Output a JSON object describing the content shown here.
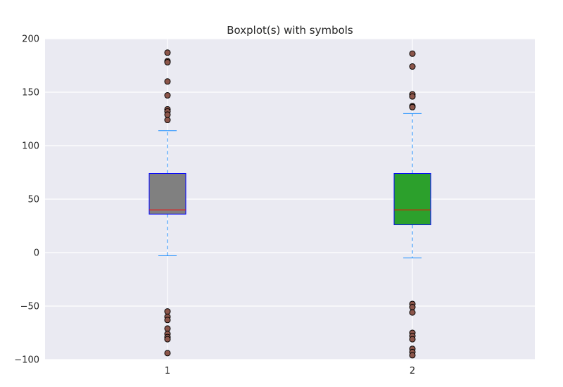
{
  "chart_data": {
    "type": "boxplot",
    "title": "Boxplot(s) with symbols",
    "xlabel": "",
    "ylabel": "",
    "categories": [
      "1",
      "2"
    ],
    "ylim": [
      -100,
      200
    ],
    "yticks": [
      200,
      150,
      100,
      50,
      0,
      -50,
      -100
    ],
    "grid": true,
    "background_color": "#eaeaf2",
    "grid_color": "#ffffff",
    "box_edge_color": "#0000ff",
    "median_color": "#ff0000",
    "whisker_color": "#1e90ff",
    "flier_color": "#8c564b",
    "flier_edge_color": "#000000",
    "boxes": [
      {
        "label": "1",
        "fill_color": "#808080",
        "whisker_low": -3,
        "q1": 36,
        "median": 40,
        "q3": 74,
        "whisker_high": 114,
        "fliers": [
          187,
          179,
          178,
          160,
          147,
          134,
          132,
          129,
          124,
          -55,
          -60,
          -63,
          -71,
          -76,
          -79,
          -81,
          -94
        ]
      },
      {
        "label": "2",
        "fill_color": "#2ca02c",
        "whisker_low": -5,
        "q1": 26,
        "median": 40,
        "q3": 74,
        "whisker_high": 130,
        "fliers": [
          186,
          174,
          148,
          146,
          137,
          136,
          -48,
          -51,
          -56,
          -75,
          -78,
          -81,
          -90,
          -93,
          -96
        ]
      }
    ]
  }
}
